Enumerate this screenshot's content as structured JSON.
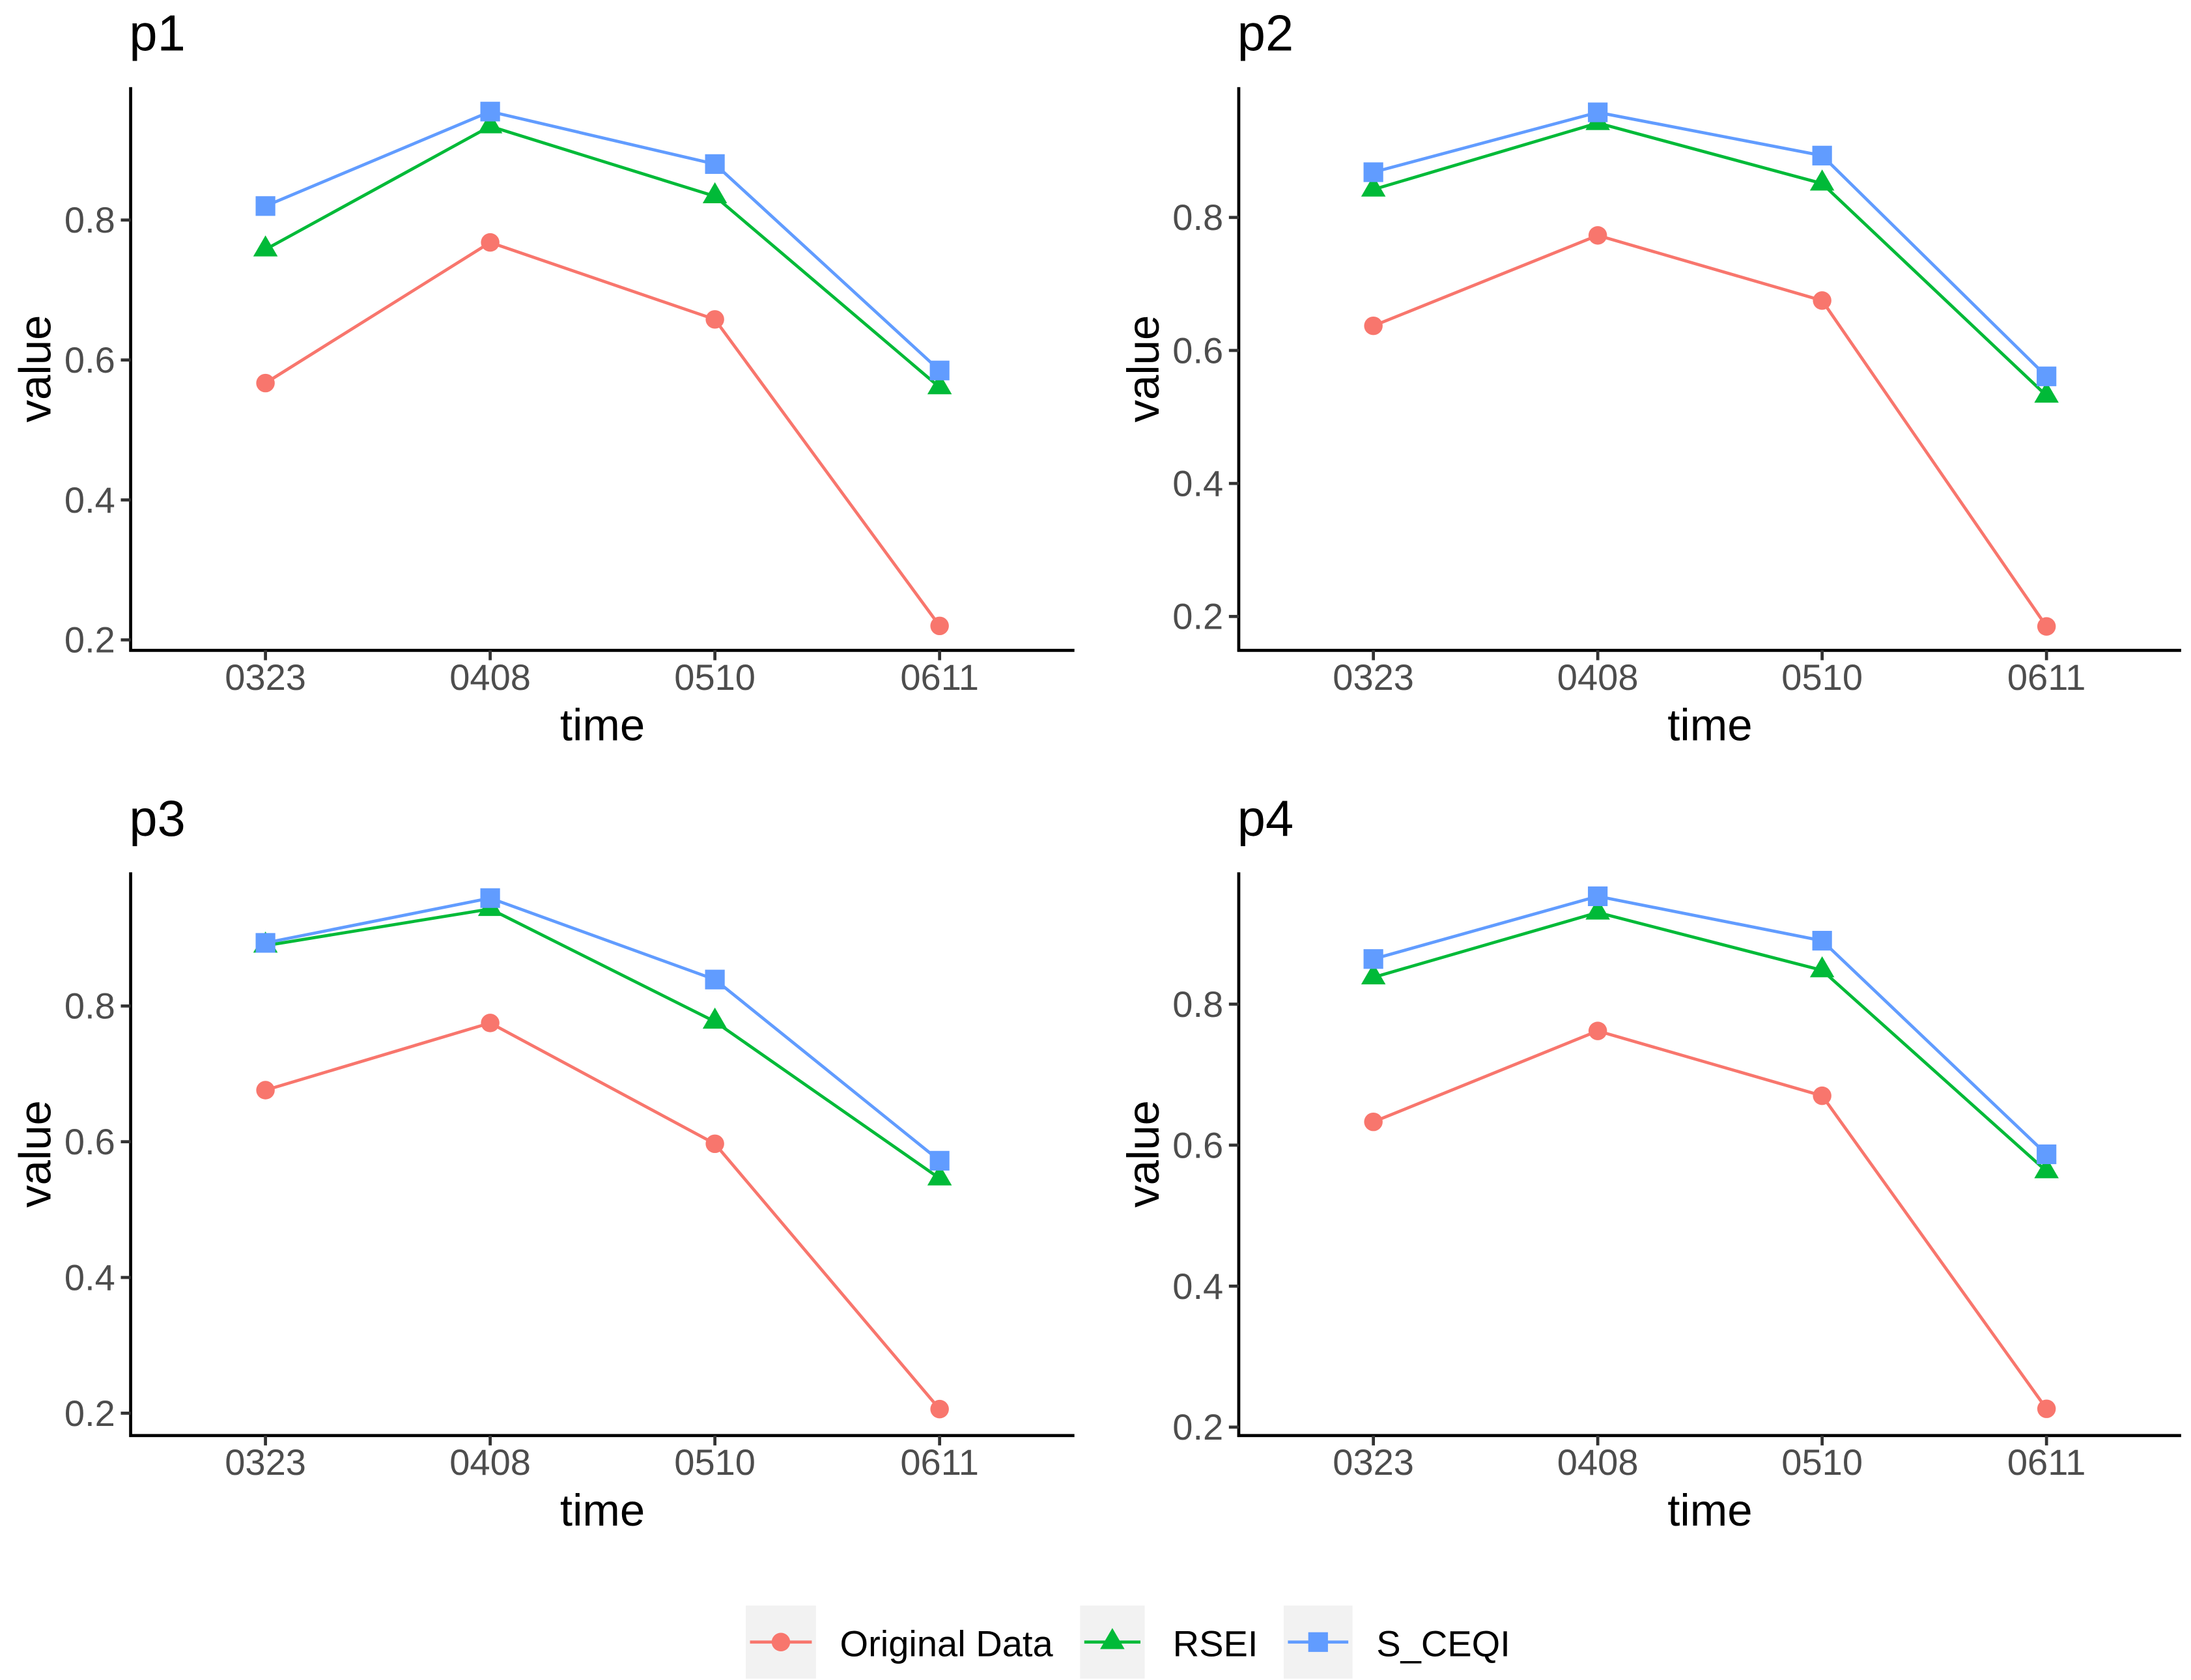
{
  "chart_data": {
    "type": "line",
    "xlabel": "time",
    "ylabel": "value",
    "categories": [
      "0323",
      "0408",
      "0510",
      "0611"
    ],
    "legend_position": "bottom",
    "series": [
      {
        "name": "Original Data",
        "color": "#F8766D",
        "marker": "circle"
      },
      {
        "name": "RSEI",
        "color": "#00BA38",
        "marker": "triangle"
      },
      {
        "name": "S_CEQI",
        "color": "#619CFF",
        "marker": "square"
      }
    ],
    "panels": [
      {
        "title": "p1",
        "ylim": [
          0.185,
          0.99
        ],
        "yticks": [
          "0.2",
          "0.4",
          "0.6",
          "0.8"
        ],
        "values": [
          [
            0.567,
            0.768,
            0.658,
            0.22
          ],
          [
            0.758,
            0.934,
            0.834,
            0.561
          ],
          [
            0.82,
            0.955,
            0.88,
            0.585
          ]
        ]
      },
      {
        "title": "p2",
        "ylim": [
          0.149,
          0.996
        ],
        "yticks": [
          "0.2",
          "0.4",
          "0.6",
          "0.8"
        ],
        "values": [
          [
            0.637,
            0.773,
            0.675,
            0.185
          ],
          [
            0.842,
            0.942,
            0.851,
            0.532
          ],
          [
            0.868,
            0.958,
            0.893,
            0.561
          ]
        ]
      },
      {
        "title": "p3",
        "ylim": [
          0.167,
          0.997
        ],
        "yticks": [
          "0.2",
          "0.4",
          "0.6",
          "0.8"
        ],
        "values": [
          [
            0.676,
            0.775,
            0.597,
            0.206
          ],
          [
            0.889,
            0.943,
            0.777,
            0.546
          ],
          [
            0.893,
            0.959,
            0.839,
            0.572
          ]
        ]
      },
      {
        "title": "p4",
        "ylim": [
          0.188,
          0.987
        ],
        "yticks": [
          "0.2",
          "0.4",
          "0.6",
          "0.8"
        ],
        "values": [
          [
            0.633,
            0.762,
            0.67,
            0.226
          ],
          [
            0.838,
            0.93,
            0.848,
            0.563
          ],
          [
            0.864,
            0.953,
            0.89,
            0.587
          ]
        ]
      }
    ]
  }
}
